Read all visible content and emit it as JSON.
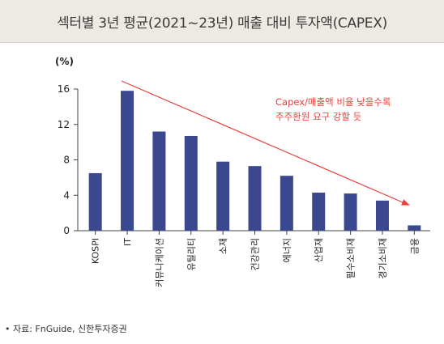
{
  "header": {
    "title": "섹터별 3년 평균(2021~23년) 매출 대비 투자액(CAPEX)"
  },
  "chart_data": {
    "type": "bar",
    "title": "섹터별 3년 평균(2021~23년) 매출 대비 투자액(CAPEX)",
    "unit_label": "(%)",
    "categories": [
      "KOSPI",
      "IT",
      "커뮤니케이션",
      "유틸리티",
      "소재",
      "건강관리",
      "에너지",
      "산업재",
      "필수소비재",
      "경기소비재",
      "금융"
    ],
    "values": [
      6.5,
      15.8,
      11.2,
      10.7,
      7.8,
      7.3,
      6.2,
      4.3,
      4.2,
      3.4,
      0.6
    ],
    "yticks": [
      0,
      4,
      8,
      12,
      16
    ],
    "ylim": [
      0,
      16
    ],
    "bar_color": "#3b4890",
    "annotation": {
      "lines": [
        "Capex/매출액 비율 낮을수록",
        "주주환원 요구 강할 듯"
      ],
      "color": "#e8403a"
    }
  },
  "footer": {
    "source": "• 자료: FnGuide, 신한투자증권"
  }
}
